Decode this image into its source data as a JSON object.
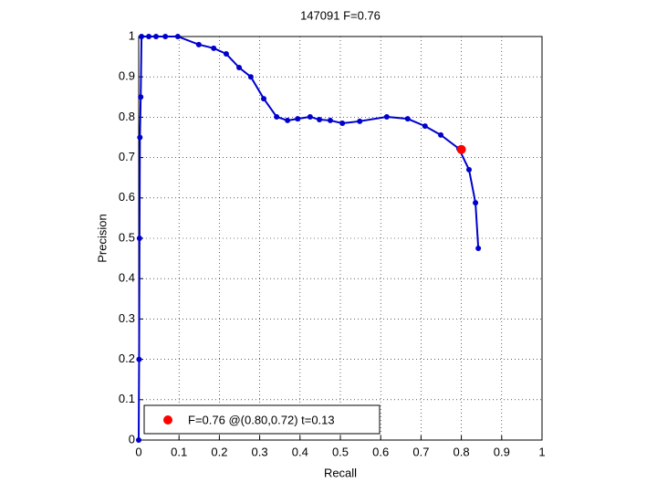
{
  "chart_data": {
    "type": "line",
    "title": "147091 F=0.76",
    "x_label": "Recall",
    "y_label": "Precision",
    "xlim": [
      0,
      1
    ],
    "ylim": [
      0,
      1
    ],
    "xticks": [
      0,
      0.1,
      0.2,
      0.3,
      0.4,
      0.5,
      0.6,
      0.7,
      0.8,
      0.9,
      1
    ],
    "yticks": [
      0,
      0.1,
      0.2,
      0.3,
      0.4,
      0.5,
      0.6,
      0.7,
      0.8,
      0.9,
      1
    ],
    "grid": true,
    "series": [
      {
        "color": "#0000cc",
        "x": [
          0,
          0.001,
          0.002,
          0.003,
          0.005,
          0.007,
          0.025,
          0.043,
          0.066,
          0.097,
          0.149,
          0.186,
          0.217,
          0.249,
          0.278,
          0.31,
          0.342,
          0.369,
          0.394,
          0.425,
          0.448,
          0.475,
          0.505,
          0.548,
          0.615,
          0.667,
          0.71,
          0.749,
          0.794,
          0.819,
          0.835,
          0.842
        ],
        "values": [
          0,
          0.2,
          0.5,
          0.75,
          0.85,
          1,
          1,
          1,
          1,
          1,
          0.98,
          0.971,
          0.957,
          0.923,
          0.9,
          0.846,
          0.801,
          0.792,
          0.796,
          0.801,
          0.794,
          0.792,
          0.785,
          0.79,
          0.801,
          0.796,
          0.778,
          0.756,
          0.722,
          0.67,
          0.588,
          0.475
        ]
      }
    ],
    "highlight": {
      "name": "F=0.76 @(0.80,0.72) t=0.13",
      "color": "#ff0000",
      "x": 0.8,
      "y": 0.72
    },
    "legend": "lower left"
  }
}
